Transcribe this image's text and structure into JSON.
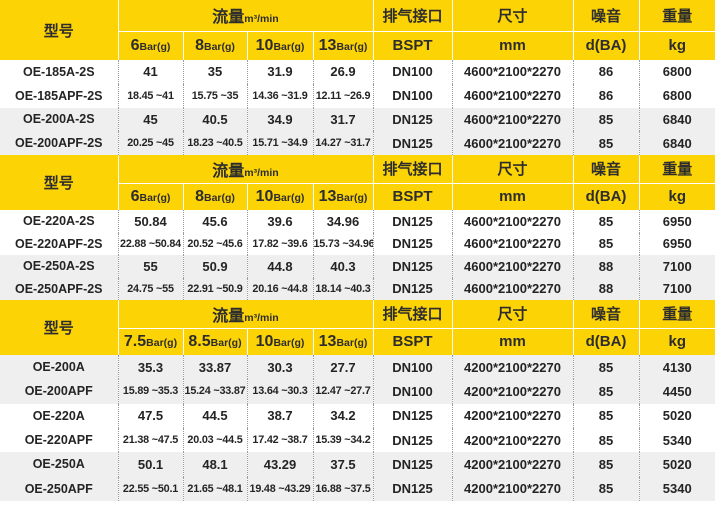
{
  "colors": {
    "header_bg": "#fcd305",
    "stripe_row_bg": "#efefef",
    "header_text": "#2d2d2d",
    "body_text": "#242424"
  },
  "table": {
    "columns": {
      "model": "型号",
      "flow_label": "流量",
      "flow_unit": "m³/min",
      "port_label": "排气接口",
      "port_unit": "BSPT",
      "size_label": "尺寸",
      "size_unit": "mm",
      "noise_label": "噪音",
      "noise_unit": "d(BA)",
      "weight_label": "重量",
      "weight_unit": "kg"
    },
    "sections": [
      {
        "pressures": [
          {
            "value": "6",
            "unit": "Bar(g)"
          },
          {
            "value": "8",
            "unit": "Bar(g)"
          },
          {
            "value": "10",
            "unit": "Bar(g)"
          },
          {
            "value": "13",
            "unit": "Bar(g)"
          }
        ],
        "rows": [
          {
            "model": "OE-185A-2S",
            "flows": [
              "41",
              "35",
              "31.9",
              "26.9"
            ],
            "port": "DN100",
            "size": "4600*2100*2270",
            "noise": "86",
            "weight": "6800"
          },
          {
            "model": "OE-185APF-2S",
            "flows": [
              "18.45 ~41",
              "15.75 ~35",
              "14.36 ~31.9",
              "12.11 ~26.9"
            ],
            "port": "DN100",
            "size": "4600*2100*2270",
            "noise": "86",
            "weight": "6800"
          },
          {
            "model": "OE-200A-2S",
            "flows": [
              "45",
              "40.5",
              "34.9",
              "31.7"
            ],
            "port": "DN125",
            "size": "4600*2100*2270",
            "noise": "85",
            "weight": "6840"
          },
          {
            "model": "OE-200APF-2S",
            "flows": [
              "20.25 ~45",
              "18.23 ~40.5",
              "15.71 ~34.9",
              "14.27 ~31.7"
            ],
            "port": "DN125",
            "size": "4600*2100*2270",
            "noise": "85",
            "weight": "6840"
          }
        ]
      },
      {
        "pressures": [
          {
            "value": "6",
            "unit": "Bar(g)"
          },
          {
            "value": "8",
            "unit": "Bar(g)"
          },
          {
            "value": "10",
            "unit": "Bar(g)"
          },
          {
            "value": "13",
            "unit": "Bar(g)"
          }
        ],
        "rows": [
          {
            "model": "OE-220A-2S",
            "flows": [
              "50.84",
              "45.6",
              "39.6",
              "34.96"
            ],
            "port": "DN125",
            "size": "4600*2100*2270",
            "noise": "85",
            "weight": "6950"
          },
          {
            "model": "OE-220APF-2S",
            "flows": [
              "22.88 ~50.84",
              "20.52 ~45.6",
              "17.82 ~39.6",
              "15.73 ~34.96"
            ],
            "port": "DN125",
            "size": "4600*2100*2270",
            "noise": "85",
            "weight": "6950"
          },
          {
            "model": "OE-250A-2S",
            "flows": [
              "55",
              "50.9",
              "44.8",
              "40.3"
            ],
            "port": "DN125",
            "size": "4600*2100*2270",
            "noise": "88",
            "weight": "7100"
          },
          {
            "model": "OE-250APF-2S",
            "flows": [
              "24.75 ~55",
              "22.91 ~50.9",
              "20.16 ~44.8",
              "18.14 ~40.3"
            ],
            "port": "DN125",
            "size": "4600*2100*2270",
            "noise": "88",
            "weight": "7100"
          }
        ]
      },
      {
        "pressures": [
          {
            "value": "7.5",
            "unit": "Bar(g)"
          },
          {
            "value": "8.5",
            "unit": "Bar(g)"
          },
          {
            "value": "10",
            "unit": "Bar(g)"
          },
          {
            "value": "13",
            "unit": "Bar(g)"
          }
        ],
        "rows": [
          {
            "model": "OE-200A",
            "flows": [
              "35.3",
              "33.87",
              "30.3",
              "27.7"
            ],
            "port": "DN100",
            "size": "4200*2100*2270",
            "noise": "85",
            "weight": "4130"
          },
          {
            "model": "OE-200APF",
            "flows": [
              "15.89 ~35.3",
              "15.24 ~33.87",
              "13.64 ~30.3",
              "12.47 ~27.7"
            ],
            "port": "DN100",
            "size": "4200*2100*2270",
            "noise": "85",
            "weight": "4450"
          },
          {
            "model": "OE-220A",
            "flows": [
              "47.5",
              "44.5",
              "38.7",
              "34.2"
            ],
            "port": "DN125",
            "size": "4200*2100*2270",
            "noise": "85",
            "weight": "5020"
          },
          {
            "model": "OE-220APF",
            "flows": [
              "21.38 ~47.5",
              "20.03 ~44.5",
              "17.42 ~38.7",
              "15.39 ~34.2"
            ],
            "port": "DN125",
            "size": "4200*2100*2270",
            "noise": "85",
            "weight": "5340"
          },
          {
            "model": "OE-250A",
            "flows": [
              "50.1",
              "48.1",
              "43.29",
              "37.5"
            ],
            "port": "DN125",
            "size": "4200*2100*2270",
            "noise": "85",
            "weight": "5020"
          },
          {
            "model": "OE-250APF",
            "flows": [
              "22.55 ~50.1",
              "21.65 ~48.1",
              "19.48 ~43.29",
              "16.88 ~37.5"
            ],
            "port": "DN125",
            "size": "4200*2100*2270",
            "noise": "85",
            "weight": "5340"
          }
        ]
      }
    ]
  }
}
